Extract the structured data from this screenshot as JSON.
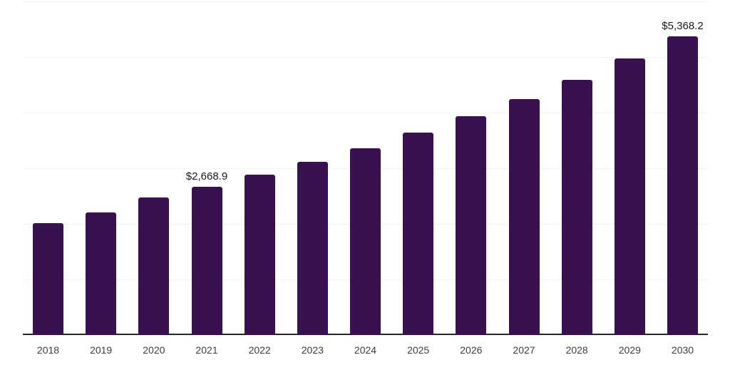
{
  "chart_data": {
    "type": "bar",
    "title": "",
    "xlabel": "",
    "ylabel": "",
    "categories": [
      "2018",
      "2019",
      "2020",
      "2021",
      "2022",
      "2023",
      "2024",
      "2025",
      "2026",
      "2027",
      "2028",
      "2029",
      "2030"
    ],
    "values": [
      2010,
      2200,
      2475,
      2668.9,
      2890,
      3115,
      3360,
      3635,
      3935,
      4245,
      4590,
      4975,
      5368.2
    ],
    "value_labels": [
      null,
      null,
      null,
      "$2,668.9",
      null,
      null,
      null,
      null,
      null,
      null,
      null,
      null,
      "$5,368.2"
    ],
    "ylim": [
      0,
      6000
    ],
    "gridline_interval": 1000,
    "grid": "horizontal",
    "legend": "none",
    "bar_color": "#3a1150",
    "gridline_color": "#f2f2f4",
    "axis_line_color": "#262626",
    "x_label_color": "#3d3d3d",
    "value_label_color": "#1b1b1b"
  }
}
